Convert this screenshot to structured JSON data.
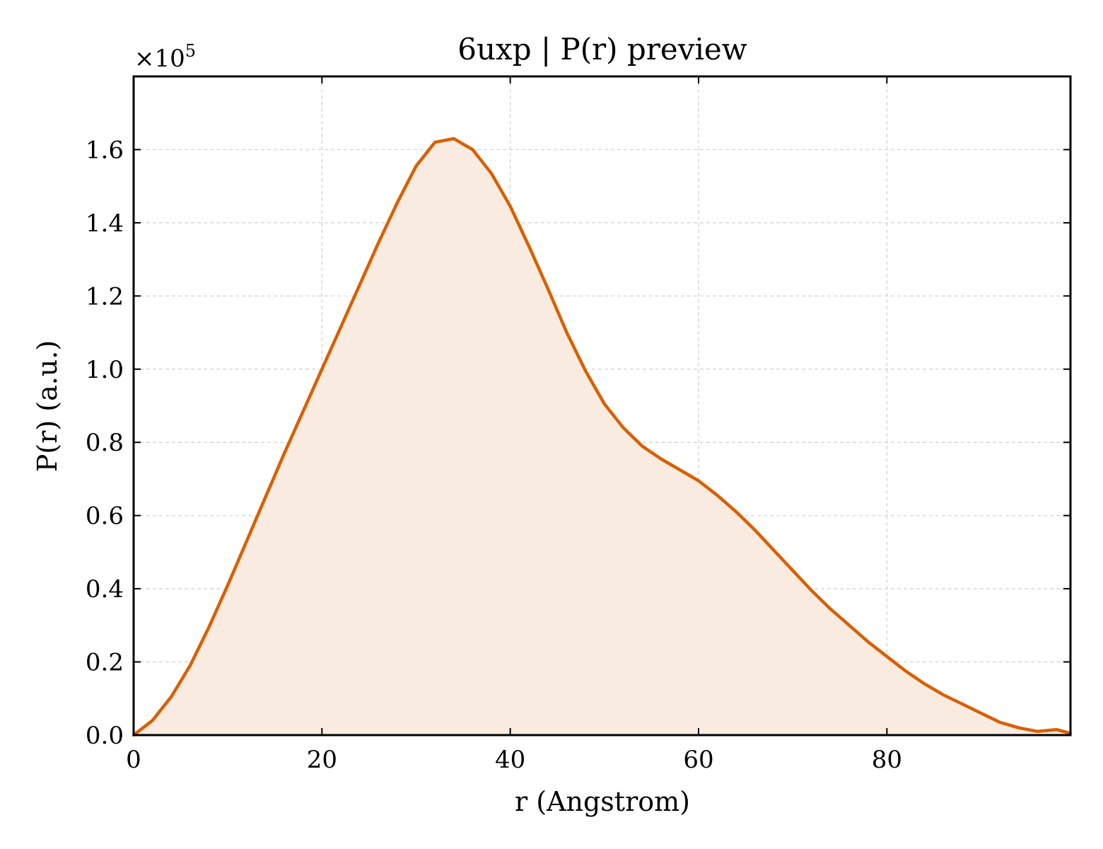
{
  "chart_data": {
    "type": "area",
    "title": "6uxp | P(r) preview",
    "xlabel": "r (Angstrom)",
    "ylabel": "P(r) (a.u.)",
    "y_multiplier_label": "×10",
    "y_multiplier_exponent": "5",
    "xlim": [
      0,
      99.5
    ],
    "ylim": [
      0,
      1.8
    ],
    "x_ticks": [
      0,
      20,
      40,
      60,
      80
    ],
    "x_tick_labels": [
      "0",
      "20",
      "40",
      "60",
      "80"
    ],
    "y_ticks": [
      0.0,
      0.2,
      0.4,
      0.6,
      0.8,
      1.0,
      1.2,
      1.4,
      1.6
    ],
    "y_tick_labels": [
      "0.0",
      "0.2",
      "0.4",
      "0.6",
      "0.8",
      "1.0",
      "1.2",
      "1.4",
      "1.6"
    ],
    "grid": true,
    "line_color": "#d95f02",
    "fill_color": "#f9ebe0",
    "series": [
      {
        "x": [
          0,
          2,
          4,
          6,
          8,
          10,
          12,
          14,
          16,
          18,
          20,
          22,
          24,
          26,
          28,
          30,
          32,
          34,
          36,
          38,
          40,
          42,
          44,
          46,
          48,
          50,
          52,
          54,
          56,
          58,
          60,
          62,
          64,
          66,
          68,
          70,
          72,
          74,
          76,
          78,
          80,
          82,
          84,
          86,
          88,
          90,
          92,
          94,
          96,
          98,
          99.5
        ],
        "y": [
          0.0,
          0.04,
          0.105,
          0.19,
          0.295,
          0.41,
          0.53,
          0.65,
          0.77,
          0.885,
          1.0,
          1.115,
          1.23,
          1.345,
          1.455,
          1.555,
          1.62,
          1.63,
          1.6,
          1.535,
          1.445,
          1.335,
          1.22,
          1.1,
          0.995,
          0.905,
          0.84,
          0.79,
          0.755,
          0.725,
          0.695,
          0.655,
          0.61,
          0.56,
          0.505,
          0.45,
          0.395,
          0.345,
          0.3,
          0.255,
          0.215,
          0.175,
          0.14,
          0.11,
          0.085,
          0.06,
          0.035,
          0.02,
          0.01,
          0.015,
          0.005
        ]
      }
    ]
  }
}
